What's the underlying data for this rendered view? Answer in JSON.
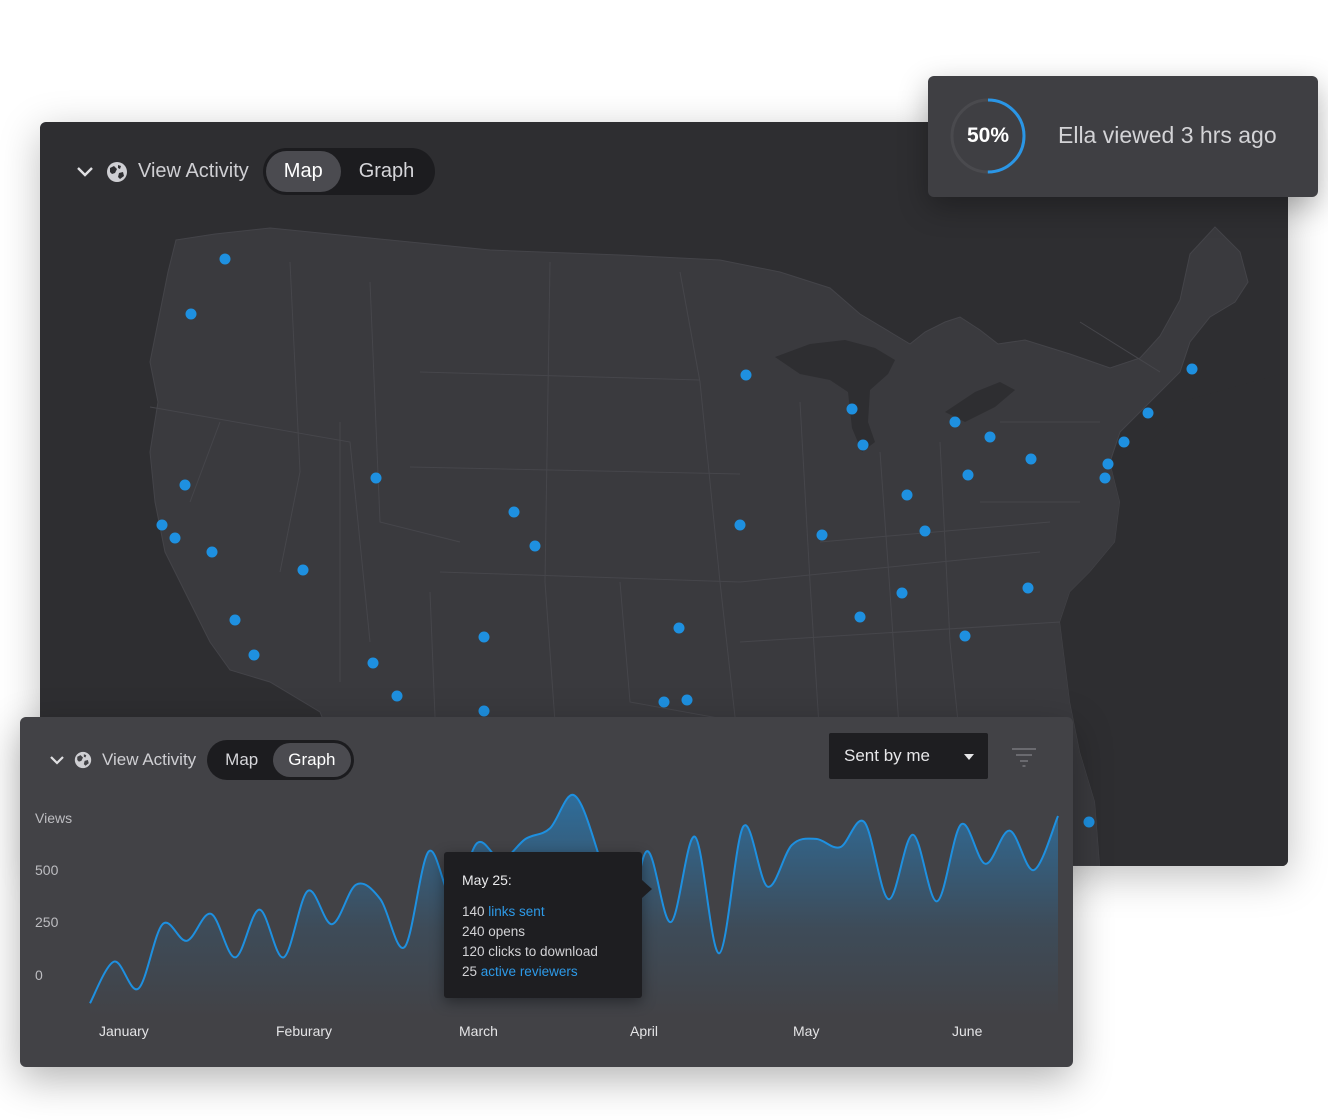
{
  "map_panel": {
    "title": "View Activity",
    "tabs": [
      "Map",
      "Graph"
    ],
    "active_tab": "Map"
  },
  "toast": {
    "progress_percent": 50,
    "progress_label": "50%",
    "message": "Ella viewed 3 hrs ago"
  },
  "graph_panel": {
    "title": "View Activity",
    "tabs": [
      "Map",
      "Graph"
    ],
    "active_tab": "Graph",
    "filter_select": {
      "value": "Sent by me"
    },
    "y_axis_title": "Views",
    "y_ticks": [
      "500",
      "250",
      "0"
    ],
    "months": [
      "January",
      "Feburary",
      "March",
      "April",
      "May",
      "June"
    ],
    "tooltip": {
      "date": "May 25:",
      "line1_num": "140",
      "line1_link": "links sent",
      "line2": "240 opens",
      "line3": "120 clicks to download",
      "line4_num": "25",
      "line4_link": "active reviewers"
    }
  },
  "colors": {
    "accent": "#1e90e0",
    "panel_dark": "#2e2e31",
    "panel_graph": "#424246"
  },
  "chart_data": {
    "type": "area",
    "ylabel": "Views",
    "y_ticks": [
      0,
      250,
      500
    ],
    "x_labels": [
      "January",
      "Feburary",
      "March",
      "April",
      "May",
      "June"
    ],
    "values": [
      -150,
      50,
      -80,
      230,
      150,
      280,
      70,
      300,
      70,
      390,
      230,
      420,
      350,
      120,
      580,
      350,
      620,
      540,
      640,
      690,
      850,
      570,
      110,
      580,
      240,
      650,
      90,
      700,
      410,
      610,
      640,
      600,
      720,
      350,
      660,
      340,
      710,
      520,
      680,
      490,
      750
    ]
  }
}
